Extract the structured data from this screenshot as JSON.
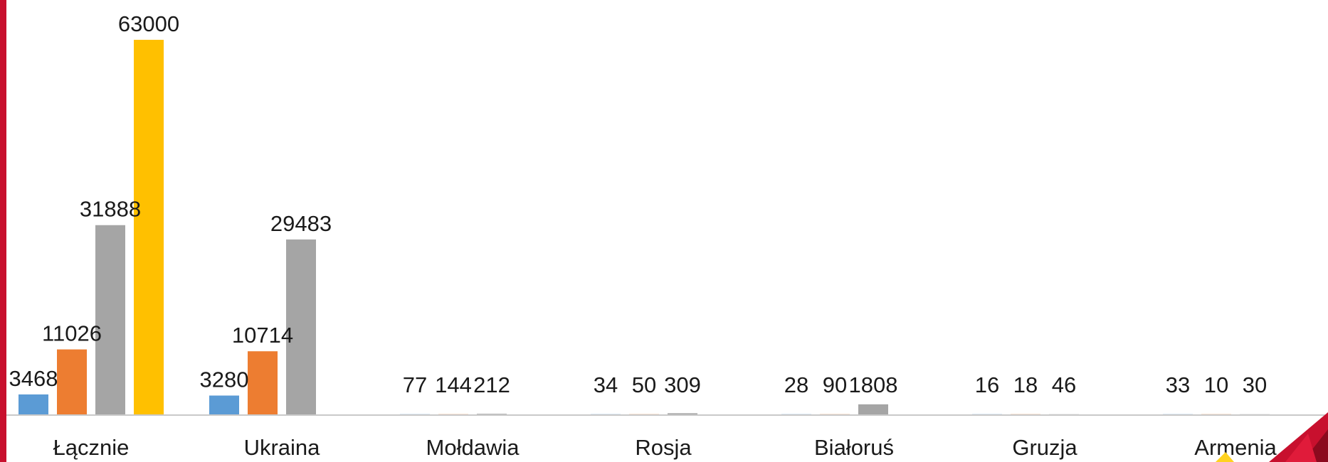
{
  "colors": {
    "series": [
      "#5B9BD5",
      "#ED7D31",
      "#A5A5A5",
      "#FFC000"
    ],
    "accent_red": "#C8102E",
    "axis": "#c9c9c9"
  },
  "chart_data": {
    "type": "bar",
    "categories": [
      "Łącznie",
      "Ukraina",
      "Mołdawia",
      "Rosja",
      "Białoruś",
      "Gruzja",
      "Armenia"
    ],
    "series": [
      {
        "values": [
          3468,
          3280,
          77,
          34,
          28,
          16,
          33
        ]
      },
      {
        "values": [
          11026,
          10714,
          144,
          50,
          90,
          18,
          10
        ]
      },
      {
        "values": [
          31888,
          29483,
          212,
          309,
          1808,
          46,
          30
        ]
      },
      {
        "values": [
          63000,
          null,
          null,
          null,
          null,
          null,
          null
        ]
      }
    ],
    "ylim": [
      0,
      63000
    ],
    "grid": false,
    "legend": "none"
  }
}
